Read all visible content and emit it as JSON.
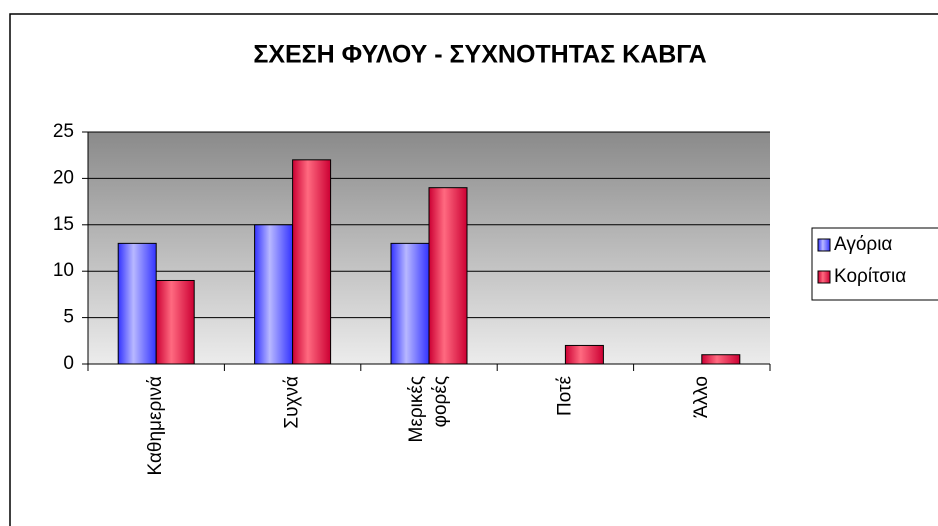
{
  "chart_data": {
    "type": "bar",
    "title": "ΣΧΕΣΗ ΦΥΛΟΥ - ΣΥΧΝΟΤΗΤΑΣ ΚΑΒΓΑ",
    "categories": [
      "Καθημερινά",
      "Συχνά",
      "Μερικές φορές",
      "Ποτέ",
      "Άλλο"
    ],
    "series": [
      {
        "name": "Αγόρια",
        "color": "#3333ff",
        "values": [
          13,
          15,
          13,
          0,
          0
        ]
      },
      {
        "name": "Κορίτσια",
        "color": "#cc0033",
        "values": [
          9,
          22,
          19,
          2,
          1
        ]
      }
    ],
    "ylim": [
      0,
      25
    ],
    "yticks": [
      0,
      5,
      10,
      15,
      20,
      25
    ],
    "grid": true,
    "legend": "right"
  }
}
